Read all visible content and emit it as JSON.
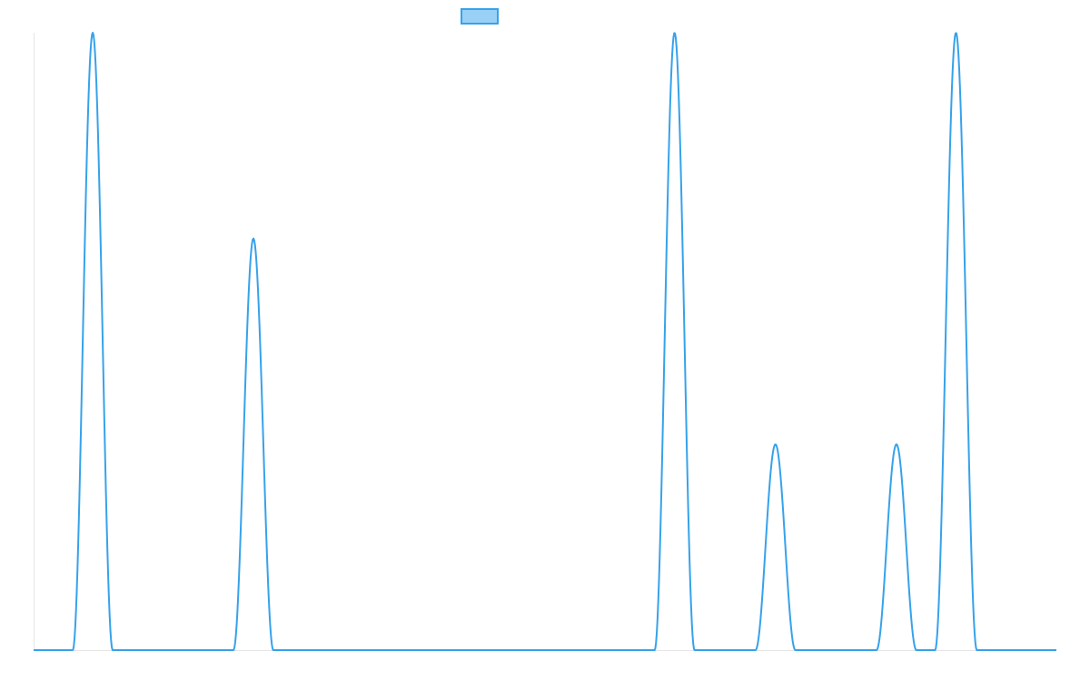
{
  "chart_data": {
    "type": "line",
    "title": "",
    "xlabel": "",
    "ylabel": "",
    "x_range": [
      0,
      1
    ],
    "y_range": [
      0,
      1
    ],
    "grid": false,
    "legend_position": "top-center",
    "series": [
      {
        "color": "#36a2eb",
        "fill_color": "#9ad0f5",
        "peaks": [
          {
            "center": 0.0578,
            "width": 0.0195,
            "height": 1.0
          },
          {
            "center": 0.2149,
            "width": 0.0195,
            "height": 0.6667
          },
          {
            "center": 0.6267,
            "width": 0.0195,
            "height": 1.0
          },
          {
            "center": 0.7253,
            "width": 0.0195,
            "height": 0.3333
          },
          {
            "center": 0.8436,
            "width": 0.0195,
            "height": 0.3333
          },
          {
            "center": 0.9018,
            "width": 0.0204,
            "height": 1.0
          }
        ]
      }
    ]
  }
}
